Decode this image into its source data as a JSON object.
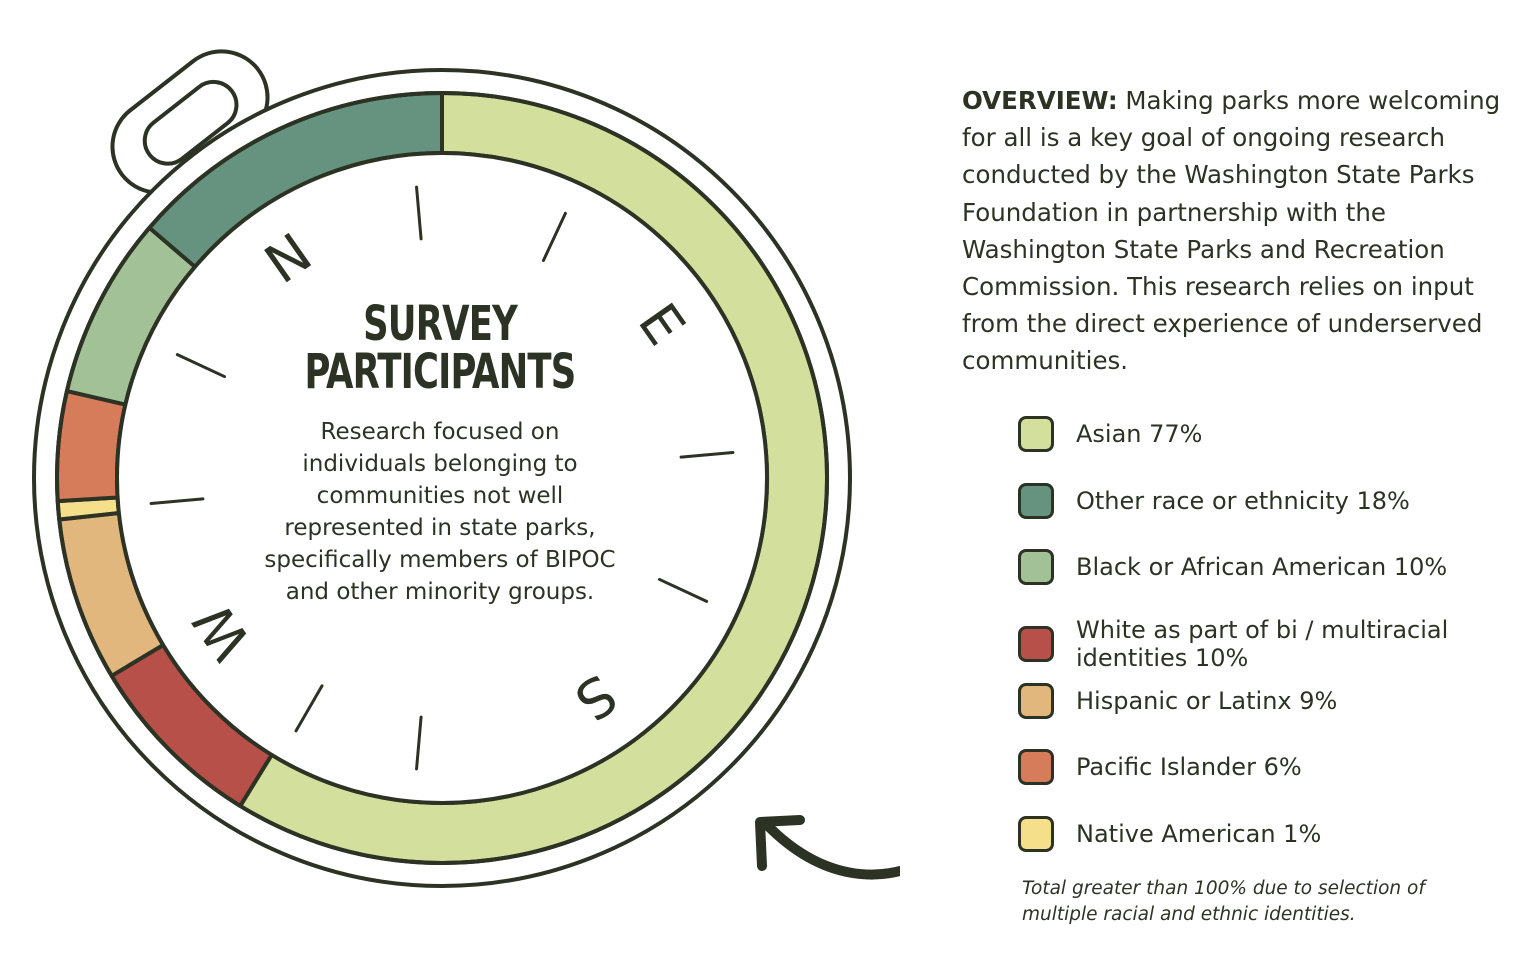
{
  "overview": {
    "heading": "OVERVIEW:",
    "text": "Making parks more welcoming for all is a key goal of ongoing research conducted by the Washington State Parks Foundation in partnership with the Washington State Parks and Recreation Commission. This research relies on input from the direct experience of underserved communities."
  },
  "compass_letters": [
    "N",
    "E",
    "S",
    "W"
  ],
  "footnote": "Total greater than 100% due to selection of multiple racial and ethnic identities.",
  "colors": {
    "outline": "#2c3324",
    "asian": "#d3df9d",
    "other": "#66937f",
    "black": "#a2c196",
    "white_multi": "#b8504a",
    "hispanic": "#e2b77d",
    "pacific": "#d67c5a",
    "native": "#f6df8a"
  },
  "chart_data": {
    "type": "pie",
    "title": "SURVEY PARTICIPANTS",
    "subtitle": "Research focused on individuals belonging to communities not well represented in state parks, specifically members of BIPOC and other minority groups.",
    "legend_position": "right",
    "slices": [
      {
        "label": "Asian 77%",
        "name": "Asian",
        "value": 77,
        "color": "#d3df9d"
      },
      {
        "label": "Other race or ethnicity 18%",
        "name": "Other race or ethnicity",
        "value": 18,
        "color": "#66937f"
      },
      {
        "label": "Black or African American 10%",
        "name": "Black or African American",
        "value": 10,
        "color": "#a2c196"
      },
      {
        "label": "White as part of bi / multiracial identities 10%",
        "name": "White as part of bi / multiracial identities",
        "value": 10,
        "color": "#b8504a"
      },
      {
        "label": "Hispanic or Latinx 9%",
        "name": "Hispanic or Latinx",
        "value": 9,
        "color": "#e2b77d"
      },
      {
        "label": "Pacific Islander 6%",
        "name": "Pacific Islander",
        "value": 6,
        "color": "#d67c5a"
      },
      {
        "label": "Native American 1%",
        "name": "Native American",
        "value": 1,
        "color": "#f6df8a"
      }
    ],
    "ring_order": [
      "Asian",
      "White as part of bi / multiracial identities",
      "Hispanic or Latinx",
      "Native American",
      "Pacific Islander",
      "Black or African American",
      "Other race or ethnicity"
    ]
  }
}
